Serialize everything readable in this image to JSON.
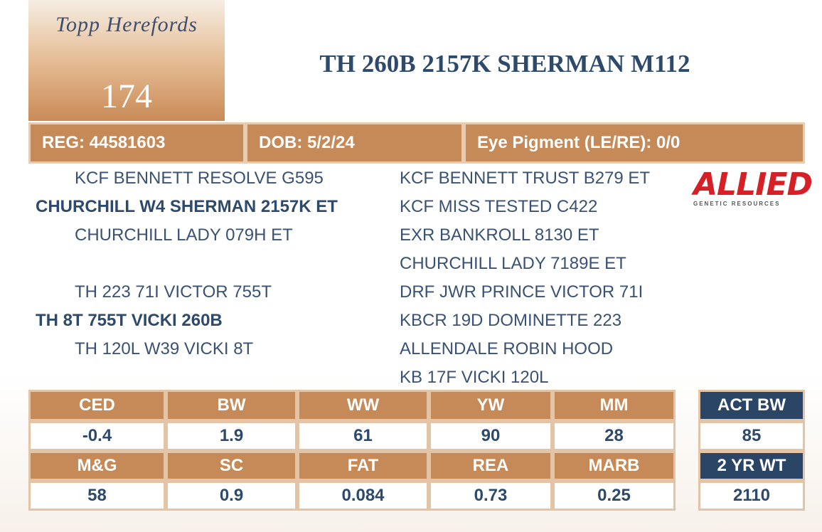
{
  "header": {
    "logo": "Topp Herefords",
    "lot": "174",
    "title": "TH 260B 2157K SHERMAN M112"
  },
  "info": [
    "REG: 44581603",
    "DOB: 5/2/24",
    "Eye Pigment (LE/RE): 0/0"
  ],
  "pedigree": {
    "sire": {
      "sire": "KCF BENNETT RESOLVE G595",
      "name": "CHURCHILL W4 SHERMAN 2157K ET",
      "dam": "CHURCHILL LADY 079H ET"
    },
    "dam": {
      "sire": "TH 223 71I VICTOR 755T",
      "name": "TH 8T 755T VICKI 260B",
      "dam": "TH 120L W39 VICKI 8T"
    },
    "grandparents": [
      "KCF BENNETT TRUST B279 ET",
      "KCF MISS TESTED C422",
      "EXR BANKROLL 8130 ET",
      "CHURCHILL LADY 7189E ET",
      "DRF JWR PRINCE VICTOR 71I",
      "KBCR 19D DOMINETTE 223",
      "ALLENDALE ROBIN HOOD",
      "KB 17F VICKI 120L"
    ]
  },
  "sponsor": {
    "name": "ALLIED",
    "tagline": "GENETIC RESOURCES"
  },
  "epd": {
    "rows": [
      [
        "CED",
        "BW",
        "WW",
        "YW",
        "MM"
      ],
      [
        "-0.4",
        "1.9",
        "61",
        "90",
        "28"
      ],
      [
        "M&G",
        "SC",
        "FAT",
        "REA",
        "MARB"
      ],
      [
        "58",
        "0.9",
        "0.084",
        "0.73",
        "0.25"
      ]
    ]
  },
  "actual": {
    "rows": [
      "ACT BW",
      "85",
      "2 YR WT",
      "2110"
    ]
  }
}
